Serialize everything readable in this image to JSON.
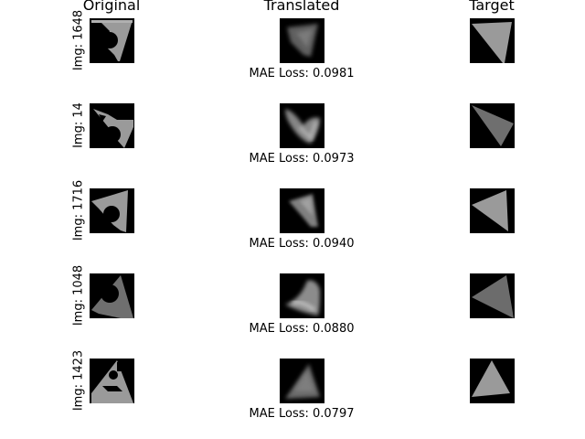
{
  "columns": [
    {
      "title": "Original"
    },
    {
      "title": "Translated"
    },
    {
      "title": "Target"
    }
  ],
  "rows": [
    {
      "label": "Img: 1648",
      "loss": "MAE Loss: 0.0981"
    },
    {
      "label": "Img: 14",
      "loss": "MAE Loss: 0.0973"
    },
    {
      "label": "Img: 1716",
      "loss": "MAE Loss: 0.0940"
    },
    {
      "label": "Img: 1048",
      "loss": "MAE Loss: 0.0880"
    },
    {
      "label": "Img: 1423",
      "loss": "MAE Loss: 0.0797"
    }
  ],
  "colors": {
    "background": "#ffffff",
    "thumbnail_background": "#000000",
    "shape_light": "#9a9a9a",
    "shape_dark": "#6c6c6c"
  }
}
